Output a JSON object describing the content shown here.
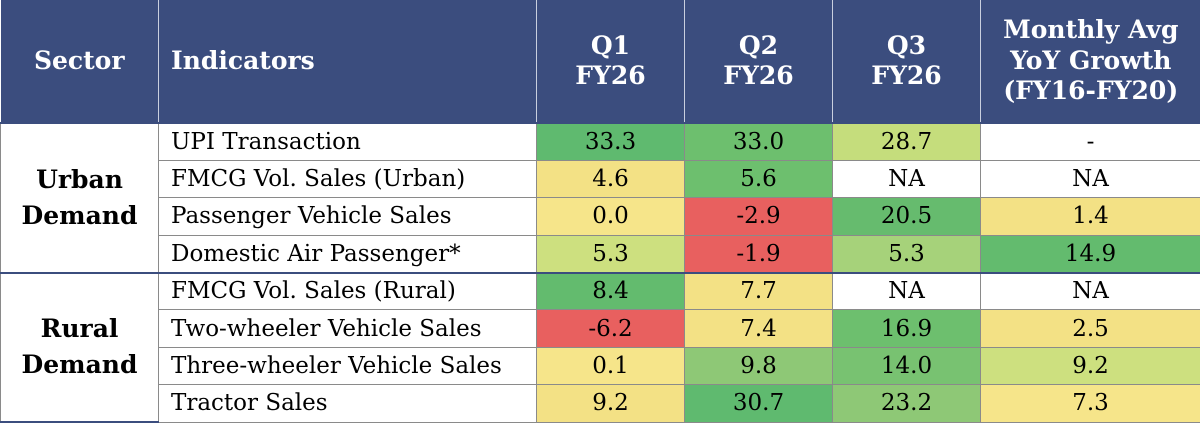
{
  "chart_data": {
    "type": "table",
    "headers": {
      "sector": "Sector",
      "indicators": "Indicators",
      "columns": [
        {
          "l1": "Q1",
          "l2": "FY26",
          "l3": ""
        },
        {
          "l1": "Q2",
          "l2": "FY26",
          "l3": ""
        },
        {
          "l1": "Q3",
          "l2": "FY26",
          "l3": ""
        },
        {
          "l1": "Monthly Avg",
          "l2": "YoY Growth",
          "l3": "(FY16-FY20)"
        }
      ]
    },
    "groups": [
      {
        "line1": "Urban",
        "line2": "Demand",
        "rows": [
          {
            "indicator": "UPI Transaction",
            "values": [
              "33.3",
              "33.0",
              "28.7",
              "-"
            ],
            "colors": [
              "#5fba6f",
              "#6dbf6e",
              "#c5dd7c",
              "#ffffff"
            ]
          },
          {
            "indicator": "FMCG Vol. Sales (Urban)",
            "values": [
              "4.6",
              "5.6",
              "NA",
              "NA"
            ],
            "colors": [
              "#f3e185",
              "#6dbf6e",
              "#ffffff",
              "#ffffff"
            ]
          },
          {
            "indicator": "Passenger Vehicle Sales",
            "values": [
              "0.0",
              "-2.9",
              "20.5",
              "1.4"
            ],
            "colors": [
              "#f6e58a",
              "#e8605f",
              "#66bb6e",
              "#f3e185"
            ]
          },
          {
            "indicator": "Domestic Air Passenger*",
            "values": [
              "5.3",
              "-1.9",
              "5.3",
              "14.9"
            ],
            "colors": [
              "#cde07f",
              "#e8605f",
              "#a6d27a",
              "#63bb6e"
            ]
          }
        ]
      },
      {
        "line1": "Rural",
        "line2": "Demand",
        "rows": [
          {
            "indicator": "FMCG Vol. Sales (Rural)",
            "values": [
              "8.4",
              "7.7",
              "NA",
              "NA"
            ],
            "colors": [
              "#63bb6e",
              "#f3e185",
              "#ffffff",
              "#ffffff"
            ]
          },
          {
            "indicator": "Two-wheeler Vehicle Sales",
            "values": [
              "-6.2",
              "7.4",
              "16.9",
              "2.5"
            ],
            "colors": [
              "#e8605f",
              "#f3e185",
              "#6dbf6e",
              "#f3e185"
            ]
          },
          {
            "indicator": "Three-wheeler Vehicle Sales",
            "values": [
              "0.1",
              "9.8",
              "14.0",
              "9.2"
            ],
            "colors": [
              "#f6e58a",
              "#8ec876",
              "#78c271",
              "#cde07f"
            ]
          },
          {
            "indicator": "Tractor Sales",
            "values": [
              "9.2",
              "30.7",
              "23.2",
              "7.3"
            ],
            "colors": [
              "#f3e185",
              "#5fba6f",
              "#8ec876",
              "#f6e58a"
            ]
          }
        ]
      }
    ]
  }
}
